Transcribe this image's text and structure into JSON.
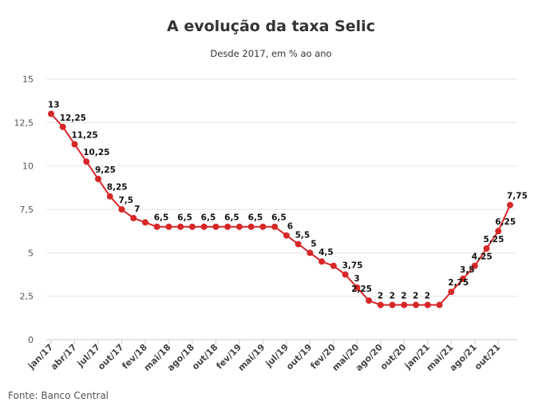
{
  "chart_data": {
    "type": "line",
    "title": "A evolução da taxa Selic",
    "subtitle": "Desde 2017, em % ao ano",
    "source": "Fonte: Banco Central",
    "xlabel": "",
    "ylabel": "",
    "ylim": [
      0,
      15
    ],
    "yticks": [
      0,
      2.5,
      5,
      7.5,
      10,
      12.5,
      15
    ],
    "ytick_labels": [
      "0",
      "2,5",
      "5",
      "7,5",
      "10",
      "12,5",
      "15"
    ],
    "grid": true,
    "color": "#d62728",
    "x_labels": [
      "jan/17",
      "abr/17",
      "jul/17",
      "out/17",
      "fev/18",
      "mai/18",
      "ago/18",
      "out/18",
      "fev/19",
      "mai/19",
      "jul/19",
      "out/19",
      "fev/20",
      "mai/20",
      "ago/20",
      "out/20",
      "jan/21",
      "mai/21",
      "ago/21",
      "out/21"
    ],
    "values": [
      13,
      12.25,
      11.25,
      10.25,
      9.25,
      8.25,
      7.5,
      7,
      6.75,
      6.5,
      6.5,
      6.5,
      6.5,
      6.5,
      6.5,
      6.5,
      6.5,
      6.5,
      6.5,
      6.5,
      6,
      5.5,
      5,
      4.5,
      4.25,
      3.75,
      3,
      2.25,
      2,
      2,
      2,
      2,
      2,
      2,
      2.75,
      3.5,
      4.25,
      5.25,
      6.25,
      7.75
    ],
    "data_labels": [
      "13",
      "12,25",
      "11,25",
      "10,25",
      "9,25",
      "8,25",
      "7,5",
      "7",
      "",
      "6,5",
      "",
      "6,5",
      "",
      "6,5",
      "",
      "6,5",
      "",
      "6,5",
      "",
      "6,5",
      "6",
      "5,5",
      "5",
      "4,5",
      "",
      "3,75",
      "3",
      "2,25",
      "2",
      "2",
      "2",
      "2",
      "2",
      "",
      "2,75",
      "3,5",
      "4,25",
      "5,25",
      "6,25",
      "7,75"
    ]
  }
}
